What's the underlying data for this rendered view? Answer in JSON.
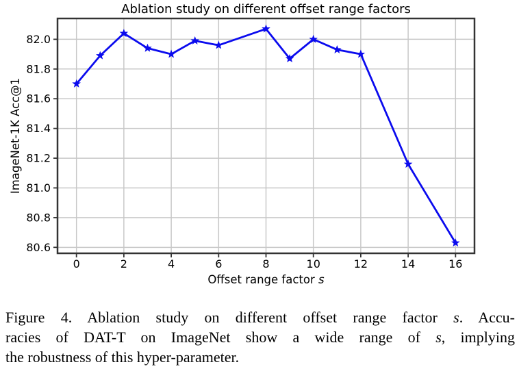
{
  "chart_data": {
    "type": "line",
    "title": "Ablation study on different offset range factors",
    "xlabel_prefix": "Offset range factor ",
    "xlabel_var": "s",
    "ylabel": "ImageNet-1K Acc@1",
    "x": [
      0,
      1,
      2,
      3,
      4,
      5,
      6,
      8,
      9,
      10,
      11,
      12,
      14,
      16
    ],
    "y": [
      81.7,
      81.89,
      82.04,
      81.94,
      81.9,
      81.99,
      81.96,
      82.07,
      81.87,
      82.0,
      81.93,
      81.9,
      81.16,
      80.63
    ],
    "xticks": [
      0,
      2,
      4,
      6,
      8,
      10,
      12,
      14,
      16
    ],
    "yticks": [
      82.0,
      81.8,
      81.6,
      81.4,
      81.2,
      81.0,
      80.8,
      80.6
    ],
    "xlim": [
      -0.8,
      16.8
    ],
    "ylim": [
      80.56,
      82.14
    ],
    "grid": true,
    "legend": "none",
    "marker": "star",
    "line_color": "#0b0bee",
    "grid_color": "#c8c8c8",
    "spine_color": "#333333",
    "text_color": "#000000"
  },
  "caption": {
    "lines": [
      {
        "segments": [
          {
            "text": "Figure 4.  Ablation study on different offset range factor ",
            "italic": false
          },
          {
            "text": "s",
            "italic": true
          },
          {
            "text": ".  Accu-",
            "italic": false
          }
        ]
      },
      {
        "segments": [
          {
            "text": "racies of DAT-T on ImageNet show a wide range of ",
            "italic": false
          },
          {
            "text": "s",
            "italic": true
          },
          {
            "text": ", implying",
            "italic": false
          }
        ]
      },
      {
        "segments": [
          {
            "text": "the robustness of this hyper-parameter.",
            "italic": false
          }
        ]
      }
    ]
  }
}
